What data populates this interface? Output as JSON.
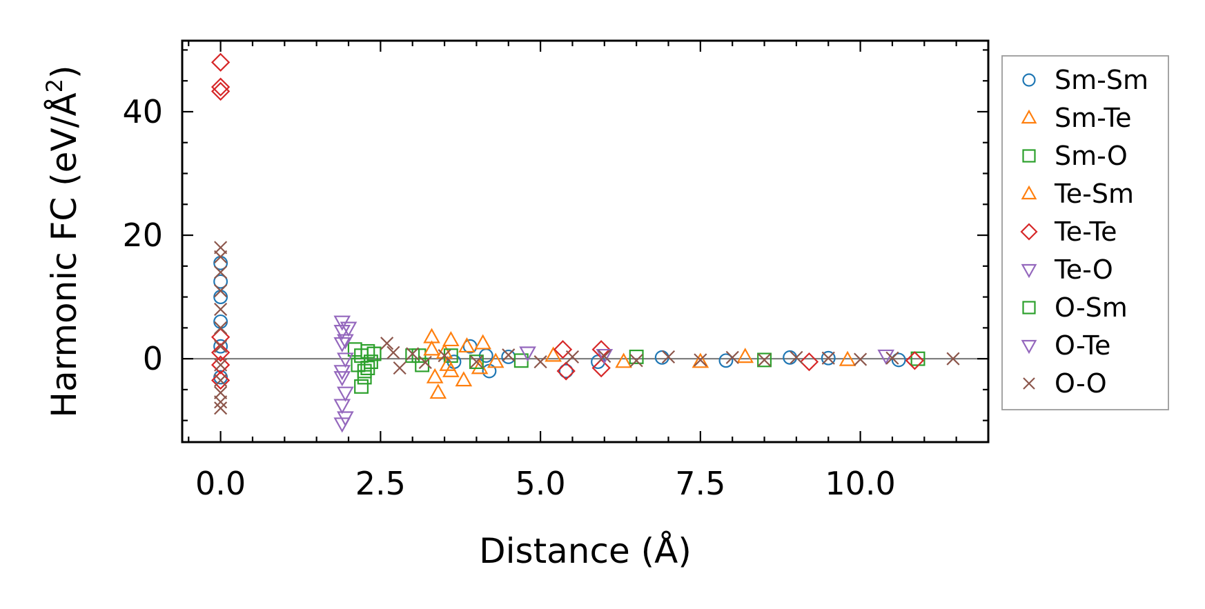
{
  "chart_data": {
    "type": "scatter",
    "title": "",
    "xlabel": "Distance (Å)",
    "ylabel_main": "Harmonic FC (eV/Å",
    "ylabel_sup": "2",
    "ylabel_tail": ")",
    "xlim": [
      -0.6,
      12.0
    ],
    "ylim": [
      -13.5,
      51.5
    ],
    "xticks": [
      0.0,
      2.5,
      5.0,
      7.5,
      10.0
    ],
    "xtick_labels": [
      "0.0",
      "2.5",
      "5.0",
      "7.5",
      "10.0"
    ],
    "yticks": [
      0,
      20,
      40
    ],
    "ytick_labels": [
      "0",
      "20",
      "40"
    ],
    "hline_y": 0,
    "legend_position": "outside-right",
    "series": [
      {
        "name": "Sm-Sm",
        "marker": "circle",
        "color": "#1f77b4",
        "x": [
          0,
          0,
          0,
          0,
          0,
          0,
          3.65,
          3.9,
          4.15,
          4.2,
          4.5,
          5.4,
          5.9,
          6.9,
          7.9,
          8.9,
          9.5,
          10.6
        ],
        "y": [
          15.5,
          12.5,
          10,
          6,
          2,
          -3,
          -0.5,
          2,
          0.5,
          -2,
          0.3,
          -2,
          -0.5,
          0.2,
          -0.3,
          0.2,
          0.1,
          -0.2
        ]
      },
      {
        "name": "Sm-Te",
        "marker": "triangle-up",
        "color": "#ff7f0e",
        "x": [
          3.3,
          3.35,
          3.4,
          3.5,
          3.6,
          3.6,
          3.8,
          3.85,
          4.1,
          4.3,
          5.2,
          6.3,
          7.5,
          8.2,
          9.8
        ],
        "y": [
          3.5,
          -3,
          -5.5,
          1,
          3,
          -2,
          -3.5,
          2,
          2.5,
          -0.5,
          0.5,
          -0.5,
          -0.5,
          0.3,
          -0.2
        ]
      },
      {
        "name": "Sm-O",
        "marker": "square",
        "color": "#2ca02c",
        "x": [
          2.1,
          2.15,
          2.2,
          2.25,
          2.3,
          2.35,
          2.4,
          2.2,
          2.25,
          3.1,
          3.15,
          3.6,
          4.7,
          6.5,
          8.5,
          10.9
        ],
        "y": [
          1.5,
          -1,
          0.5,
          -2,
          1.2,
          -0.5,
          0.8,
          -4.5,
          -3,
          0.5,
          -1,
          0.5,
          -0.3,
          0.3,
          -0.2,
          0
        ]
      },
      {
        "name": "Te-Sm",
        "marker": "triangle-up",
        "color": "#ff7f0e",
        "x": [
          3.55,
          3.3,
          4.05
        ],
        "y": [
          -1,
          1.5,
          -1.5
        ]
      },
      {
        "name": "Te-Te",
        "marker": "diamond",
        "color": "#d62728",
        "x": [
          0,
          0,
          0,
          0,
          0,
          0,
          0,
          5.35,
          5.4,
          5.95,
          5.95,
          9.2,
          10.85
        ],
        "y": [
          48,
          44,
          43.3,
          3.5,
          1,
          -1,
          -3.5,
          1.5,
          -2,
          1.5,
          -1.5,
          -0.5,
          -0.3
        ]
      },
      {
        "name": "Te-O",
        "marker": "triangle-down",
        "color": "#9467bd",
        "x": [
          1.9,
          1.9,
          1.9,
          1.95,
          1.9,
          1.95,
          1.9,
          1.95,
          1.9,
          4.8,
          6.0,
          10.4
        ],
        "y": [
          6,
          4.5,
          2.5,
          0,
          -3,
          -5.5,
          -7.5,
          -9.5,
          -10.5,
          1,
          0.6,
          0.5
        ]
      },
      {
        "name": "O-Sm",
        "marker": "square",
        "color": "#2ca02c",
        "x": [
          2.3,
          2.4,
          3.0,
          4.0
        ],
        "y": [
          -1.5,
          0.8,
          0.5,
          -0.5
        ]
      },
      {
        "name": "O-Te",
        "marker": "triangle-down",
        "color": "#9467bd",
        "x": [
          1.95,
          1.9,
          2.0
        ],
        "y": [
          3,
          -2,
          5
        ]
      },
      {
        "name": "O-O",
        "marker": "x",
        "color": "#8c564b",
        "x": [
          0,
          0,
          0,
          0,
          0,
          0,
          0,
          0,
          0,
          0,
          0,
          0,
          2.6,
          2.7,
          2.8,
          3.0,
          3.2,
          3.5,
          4.0,
          4.5,
          5.0,
          5.5,
          6.0,
          6.5,
          7.0,
          7.5,
          8.0,
          8.5,
          9.0,
          9.5,
          10.0,
          10.5,
          11.45
        ],
        "y": [
          18,
          16.5,
          14,
          11,
          8,
          5,
          2,
          -1,
          -3.5,
          -5.5,
          -7,
          -8,
          2.5,
          1,
          -1.5,
          0.8,
          -0.6,
          0.5,
          -0.5,
          0.6,
          -0.5,
          0.3,
          0.4,
          -0.3,
          0.3,
          -0.2,
          0.2,
          -0.2,
          0.2,
          0.1,
          -0.1,
          0.1,
          0
        ]
      }
    ]
  }
}
